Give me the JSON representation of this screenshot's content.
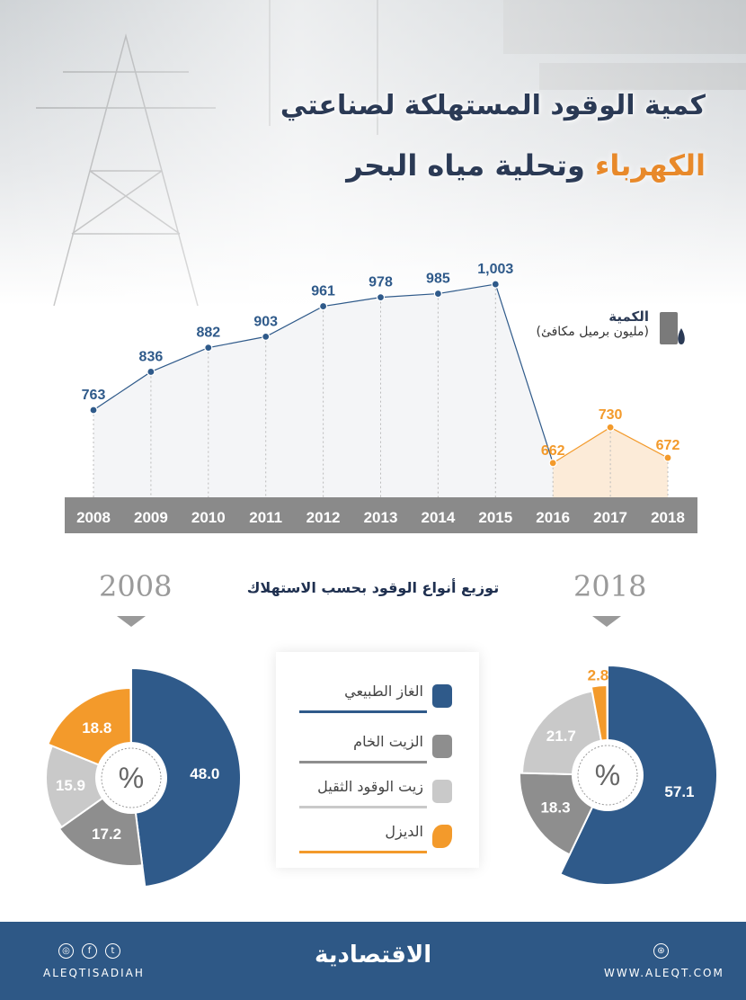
{
  "title": {
    "line1": "كمية الوقود المستهلكة لصناعتي",
    "line2_highlight": "الكهرباء",
    "line2_rest": "وتحلية مياه البحر"
  },
  "quantity_label": {
    "title": "الكمية",
    "unit": "(مليون برميل مكافئ)"
  },
  "subtitle": "توزيع أنواع الوقود بحسب الاستهلاك",
  "colors": {
    "blue": "#2f5a8a",
    "orange": "#f39a2b",
    "dark_grey": "#8e8e8e",
    "light_grey": "#c9c9c9",
    "navy": "#2b3a55"
  },
  "legend": [
    {
      "label": "الغاز الطبيعي",
      "icon": "gas-cylinder-icon",
      "color": "#2f5a8a"
    },
    {
      "label": "الزيت الخام",
      "icon": "jerrycan-icon",
      "color": "#8e8e8e"
    },
    {
      "label": "زيت الوقود الثقيل",
      "icon": "fuel-pump-icon",
      "color": "#c9c9c9"
    },
    {
      "label": "الديزل",
      "icon": "fuel-nozzle-icon",
      "color": "#f39a2b"
    }
  ],
  "chart_data": [
    {
      "type": "line",
      "title": "كمية الوقود المستهلكة",
      "ylabel": "مليون برميل مكافئ",
      "categories": [
        "2008",
        "2009",
        "2010",
        "2011",
        "2012",
        "2013",
        "2014",
        "2015",
        "2016",
        "2017",
        "2018"
      ],
      "values": [
        763,
        836,
        882,
        903,
        961,
        978,
        985,
        1003,
        662,
        730,
        672
      ],
      "labels": [
        "763",
        "836",
        "882",
        "903",
        "961",
        "978",
        "985",
        "1,003",
        "662",
        "730",
        "672"
      ]
    },
    {
      "type": "pie",
      "title": "2008",
      "center_label": "%",
      "categories": [
        "الغاز الطبيعي",
        "الزيت الخام",
        "زيت الوقود الثقيل",
        "الديزل"
      ],
      "values": [
        48.0,
        17.2,
        15.9,
        18.8
      ],
      "labels": [
        "48.0",
        "17.2",
        "15.9",
        "18.8"
      ]
    },
    {
      "type": "pie",
      "title": "2018",
      "center_label": "%",
      "categories": [
        "الغاز الطبيعي",
        "الزيت الخام",
        "زيت الوقود الثقيل",
        "الديزل"
      ],
      "values": [
        57.1,
        18.3,
        21.7,
        2.8
      ],
      "labels": [
        "57.1",
        "18.3",
        "21.7",
        "2.8"
      ]
    }
  ],
  "footer": {
    "social_handle": "ALEQTISADIAH",
    "logo": "الاقتصادية",
    "website": "WWW.ALEQT.COM",
    "icons": [
      "instagram-icon",
      "facebook-icon",
      "twitter-icon",
      "web-icon"
    ]
  }
}
